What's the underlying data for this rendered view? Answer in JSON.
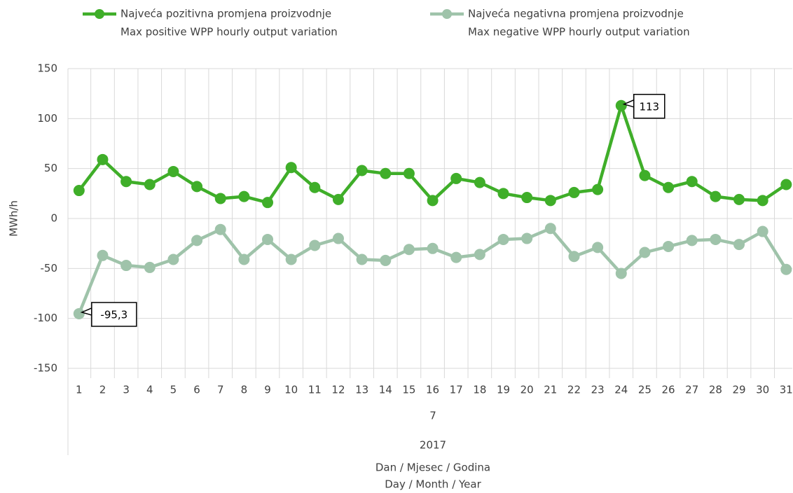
{
  "chart_data": {
    "type": "line",
    "categories": [
      "1",
      "2",
      "3",
      "4",
      "5",
      "6",
      "7",
      "8",
      "9",
      "10",
      "11",
      "12",
      "13",
      "14",
      "15",
      "16",
      "17",
      "18",
      "19",
      "20",
      "21",
      "22",
      "23",
      "24",
      "25",
      "26",
      "27",
      "28",
      "29",
      "30",
      "31"
    ],
    "category_levels": [
      "7",
      "2017"
    ],
    "x_label": [
      "Dan / Mjesec / Godina",
      "Day / Month / Year"
    ],
    "y_label": "MWh/h",
    "ylim": [
      -150,
      150
    ],
    "yticks": [
      150,
      100,
      50,
      0,
      -50,
      -100,
      -150
    ],
    "grid": true,
    "legend": "top",
    "series": [
      {
        "name": [
          "Najveća pozitivna promjena proizvodnje",
          "Max positive WPP hourly output variation"
        ],
        "color": "#3fae29",
        "values": [
          28,
          59,
          37,
          34,
          47,
          32,
          20,
          22,
          16,
          51,
          31,
          19,
          48,
          45,
          45,
          18,
          40,
          36,
          25,
          21,
          18,
          26,
          29,
          113,
          43,
          31,
          37,
          22,
          19,
          18,
          34
        ],
        "value_labels": [
          null,
          null,
          null,
          null,
          null,
          null,
          null,
          null,
          null,
          null,
          null,
          null,
          null,
          null,
          null,
          null,
          null,
          null,
          null,
          null,
          null,
          null,
          null,
          "113",
          null,
          null,
          null,
          null,
          null,
          null,
          null
        ]
      },
      {
        "name": [
          "Najveća negativna promjena proizvodnje",
          "Max negative WPP hourly output variation"
        ],
        "color": "#9fc3aa",
        "values": [
          -95.3,
          -37,
          -47,
          -49,
          -41,
          -22,
          -11,
          -41,
          -21,
          -41,
          -27,
          -20,
          -41,
          -42,
          -31,
          -30,
          -39,
          -36,
          -21,
          -20,
          -10,
          -38,
          -29,
          -55,
          -34,
          -28,
          -22,
          -21,
          -26,
          -13,
          -51
        ],
        "value_labels": [
          "-95,3",
          null,
          null,
          null,
          null,
          null,
          null,
          null,
          null,
          null,
          null,
          null,
          null,
          null,
          null,
          null,
          null,
          null,
          null,
          null,
          null,
          null,
          null,
          null,
          null,
          null,
          null,
          null,
          null,
          null,
          null
        ]
      }
    ]
  }
}
